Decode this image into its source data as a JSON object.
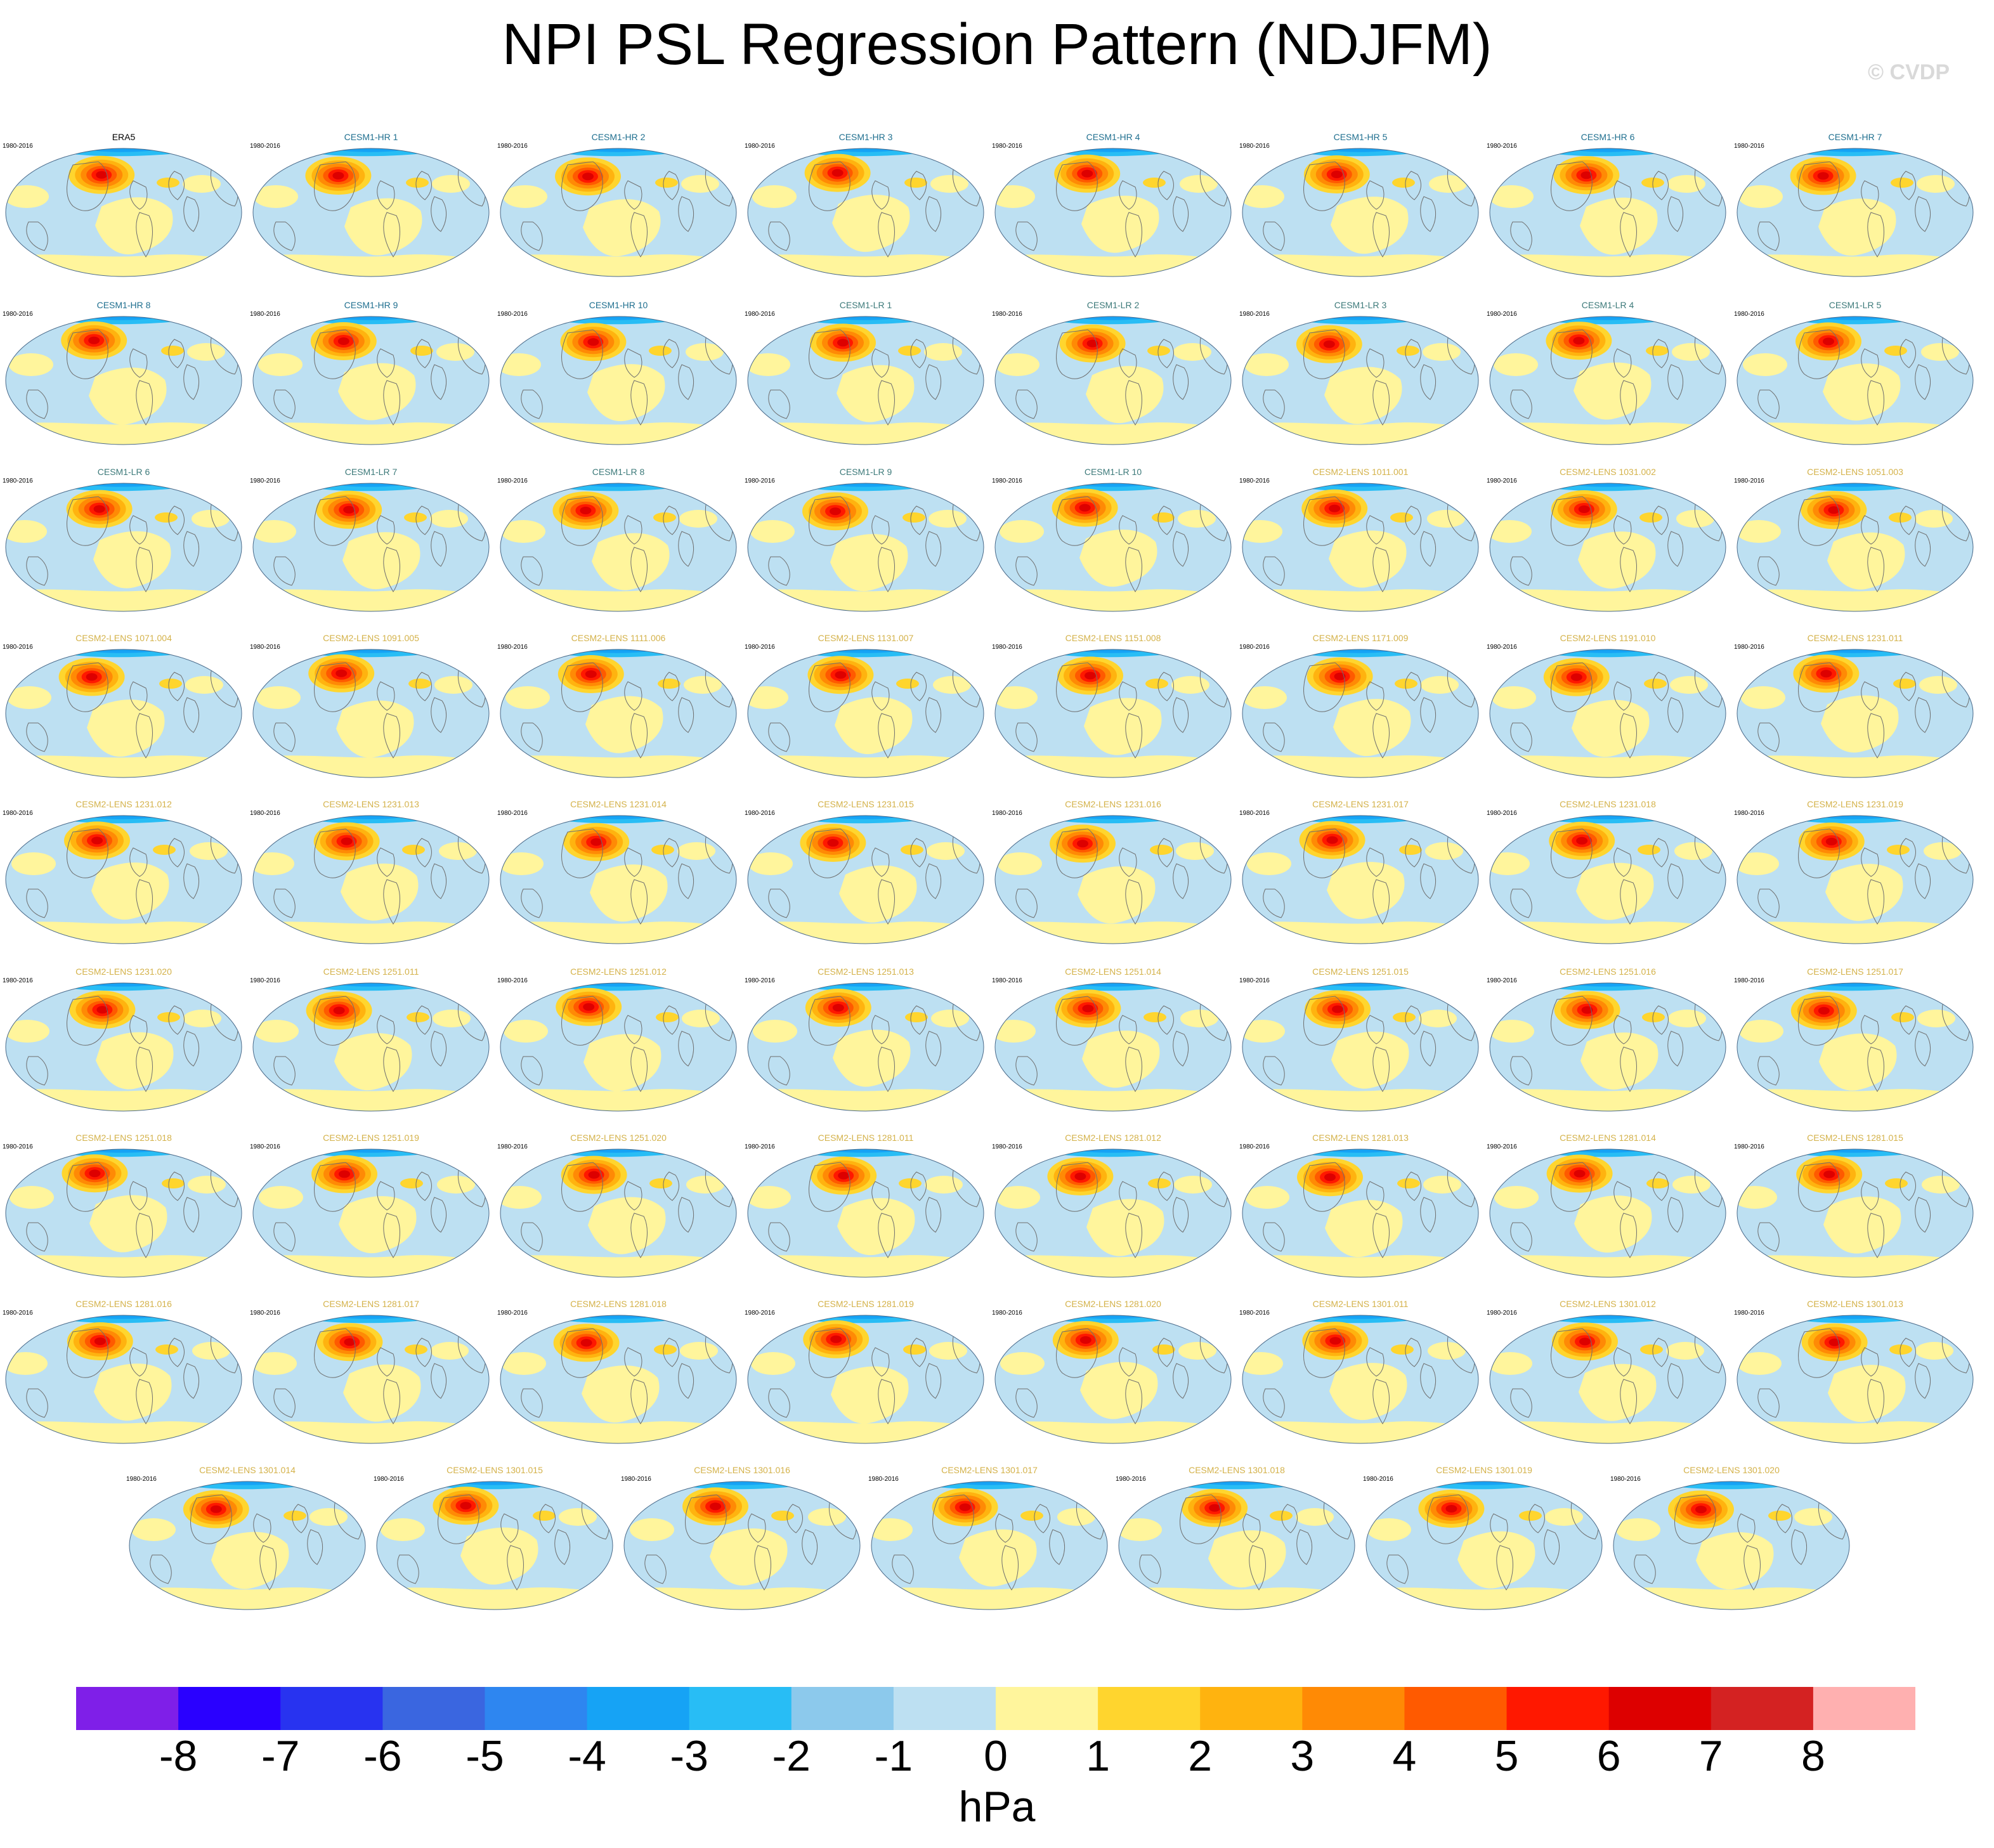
{
  "title": "NPI PSL Regression Pattern (NDJFM)",
  "credit": "© CVDP",
  "period": "1980-2016",
  "name_colors": {
    "obs": "#000000",
    "CESM1-HR": "#1f6f8f",
    "CESM1-LR": "#3d7a7a",
    "CESM2-LENS": "#d4b24a"
  },
  "panels": [
    {
      "name": "ERA5",
      "group": "obs"
    },
    {
      "name": "CESM1-HR 1",
      "group": "CESM1-HR"
    },
    {
      "name": "CESM1-HR 2",
      "group": "CESM1-HR"
    },
    {
      "name": "CESM1-HR 3",
      "group": "CESM1-HR"
    },
    {
      "name": "CESM1-HR 4",
      "group": "CESM1-HR"
    },
    {
      "name": "CESM1-HR 5",
      "group": "CESM1-HR"
    },
    {
      "name": "CESM1-HR 6",
      "group": "CESM1-HR"
    },
    {
      "name": "CESM1-HR 7",
      "group": "CESM1-HR"
    },
    {
      "name": "CESM1-HR 8",
      "group": "CESM1-HR"
    },
    {
      "name": "CESM1-HR 9",
      "group": "CESM1-HR"
    },
    {
      "name": "CESM1-HR 10",
      "group": "CESM1-HR"
    },
    {
      "name": "CESM1-LR 1",
      "group": "CESM1-LR"
    },
    {
      "name": "CESM1-LR 2",
      "group": "CESM1-LR"
    },
    {
      "name": "CESM1-LR 3",
      "group": "CESM1-LR"
    },
    {
      "name": "CESM1-LR 4",
      "group": "CESM1-LR"
    },
    {
      "name": "CESM1-LR 5",
      "group": "CESM1-LR"
    },
    {
      "name": "CESM1-LR 6",
      "group": "CESM1-LR"
    },
    {
      "name": "CESM1-LR 7",
      "group": "CESM1-LR"
    },
    {
      "name": "CESM1-LR 8",
      "group": "CESM1-LR"
    },
    {
      "name": "CESM1-LR 9",
      "group": "CESM1-LR"
    },
    {
      "name": "CESM1-LR 10",
      "group": "CESM1-LR"
    },
    {
      "name": "CESM2-LENS 1011.001",
      "group": "CESM2-LENS"
    },
    {
      "name": "CESM2-LENS 1031.002",
      "group": "CESM2-LENS"
    },
    {
      "name": "CESM2-LENS 1051.003",
      "group": "CESM2-LENS"
    },
    {
      "name": "CESM2-LENS 1071.004",
      "group": "CESM2-LENS"
    },
    {
      "name": "CESM2-LENS 1091.005",
      "group": "CESM2-LENS"
    },
    {
      "name": "CESM2-LENS 1111.006",
      "group": "CESM2-LENS"
    },
    {
      "name": "CESM2-LENS 1131.007",
      "group": "CESM2-LENS"
    },
    {
      "name": "CESM2-LENS 1151.008",
      "group": "CESM2-LENS"
    },
    {
      "name": "CESM2-LENS 1171.009",
      "group": "CESM2-LENS"
    },
    {
      "name": "CESM2-LENS 1191.010",
      "group": "CESM2-LENS"
    },
    {
      "name": "CESM2-LENS 1231.011",
      "group": "CESM2-LENS"
    },
    {
      "name": "CESM2-LENS 1231.012",
      "group": "CESM2-LENS"
    },
    {
      "name": "CESM2-LENS 1231.013",
      "group": "CESM2-LENS"
    },
    {
      "name": "CESM2-LENS 1231.014",
      "group": "CESM2-LENS"
    },
    {
      "name": "CESM2-LENS 1231.015",
      "group": "CESM2-LENS"
    },
    {
      "name": "CESM2-LENS 1231.016",
      "group": "CESM2-LENS"
    },
    {
      "name": "CESM2-LENS 1231.017",
      "group": "CESM2-LENS"
    },
    {
      "name": "CESM2-LENS 1231.018",
      "group": "CESM2-LENS"
    },
    {
      "name": "CESM2-LENS 1231.019",
      "group": "CESM2-LENS"
    },
    {
      "name": "CESM2-LENS 1231.020",
      "group": "CESM2-LENS"
    },
    {
      "name": "CESM2-LENS 1251.011",
      "group": "CESM2-LENS"
    },
    {
      "name": "CESM2-LENS 1251.012",
      "group": "CESM2-LENS"
    },
    {
      "name": "CESM2-LENS 1251.013",
      "group": "CESM2-LENS"
    },
    {
      "name": "CESM2-LENS 1251.014",
      "group": "CESM2-LENS"
    },
    {
      "name": "CESM2-LENS 1251.015",
      "group": "CESM2-LENS"
    },
    {
      "name": "CESM2-LENS 1251.016",
      "group": "CESM2-LENS"
    },
    {
      "name": "CESM2-LENS 1251.017",
      "group": "CESM2-LENS"
    },
    {
      "name": "CESM2-LENS 1251.018",
      "group": "CESM2-LENS"
    },
    {
      "name": "CESM2-LENS 1251.019",
      "group": "CESM2-LENS"
    },
    {
      "name": "CESM2-LENS 1251.020",
      "group": "CESM2-LENS"
    },
    {
      "name": "CESM2-LENS 1281.011",
      "group": "CESM2-LENS"
    },
    {
      "name": "CESM2-LENS 1281.012",
      "group": "CESM2-LENS"
    },
    {
      "name": "CESM2-LENS 1281.013",
      "group": "CESM2-LENS"
    },
    {
      "name": "CESM2-LENS 1281.014",
      "group": "CESM2-LENS"
    },
    {
      "name": "CESM2-LENS 1281.015",
      "group": "CESM2-LENS"
    },
    {
      "name": "CESM2-LENS 1281.016",
      "group": "CESM2-LENS"
    },
    {
      "name": "CESM2-LENS 1281.017",
      "group": "CESM2-LENS"
    },
    {
      "name": "CESM2-LENS 1281.018",
      "group": "CESM2-LENS"
    },
    {
      "name": "CESM2-LENS 1281.019",
      "group": "CESM2-LENS"
    },
    {
      "name": "CESM2-LENS 1281.020",
      "group": "CESM2-LENS"
    },
    {
      "name": "CESM2-LENS 1301.011",
      "group": "CESM2-LENS"
    },
    {
      "name": "CESM2-LENS 1301.012",
      "group": "CESM2-LENS"
    },
    {
      "name": "CESM2-LENS 1301.013",
      "group": "CESM2-LENS"
    },
    {
      "name": "CESM2-LENS 1301.014",
      "group": "CESM2-LENS"
    },
    {
      "name": "CESM2-LENS 1301.015",
      "group": "CESM2-LENS"
    },
    {
      "name": "CESM2-LENS 1301.016",
      "group": "CESM2-LENS"
    },
    {
      "name": "CESM2-LENS 1301.017",
      "group": "CESM2-LENS"
    },
    {
      "name": "CESM2-LENS 1301.018",
      "group": "CESM2-LENS"
    },
    {
      "name": "CESM2-LENS 1301.019",
      "group": "CESM2-LENS"
    },
    {
      "name": "CESM2-LENS 1301.020",
      "group": "CESM2-LENS"
    }
  ],
  "chart_data": {
    "type": "heatmap",
    "title": "NPI PSL Regression Pattern (NDJFM)",
    "units": "hPa",
    "colorbar": {
      "ticks": [
        -8,
        -7,
        -6,
        -5,
        -4,
        -3,
        -2,
        -1,
        0,
        1,
        2,
        3,
        4,
        5,
        6,
        7,
        8
      ],
      "colors": [
        "#7f1fe8",
        "#2a00ff",
        "#2833f0",
        "#3a66e0",
        "#2e86f0",
        "#16a3f5",
        "#28bdf5",
        "#8cc9ec",
        "#bde0f2",
        "#fff59c",
        "#ffd52e",
        "#ffb30f",
        "#ff8a05",
        "#ff5a00",
        "#ff1800",
        "#dd0000",
        "#d42222",
        "#ffb0b0"
      ]
    }
  }
}
